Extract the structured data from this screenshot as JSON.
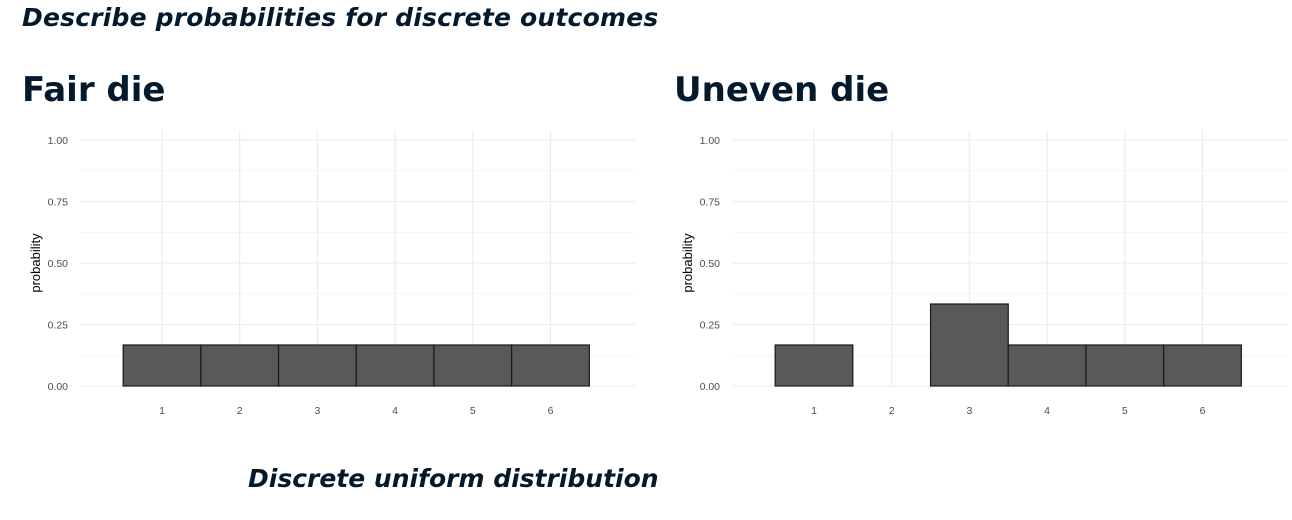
{
  "page": {
    "heading": "Describe probabilities for discrete outcomes",
    "caption": "Discrete uniform distribution"
  },
  "colors": {
    "text": "#05192d",
    "bar_fill": "#595959",
    "bar_stroke": "#1a1a1a",
    "grid": "#ebebeb",
    "tick_text": "#4d4d4d",
    "axis_label": "#000000"
  },
  "chart_data": [
    {
      "type": "bar",
      "title": "Fair die",
      "ylabel": "probability",
      "xlabel": "",
      "categories": [
        "1",
        "2",
        "3",
        "4",
        "5",
        "6"
      ],
      "values": [
        0.1667,
        0.1667,
        0.1667,
        0.1667,
        0.1667,
        0.1667
      ],
      "ylim": [
        0,
        1
      ],
      "yticks": [
        "0.00",
        "0.25",
        "0.50",
        "0.75",
        "1.00"
      ],
      "grid": true,
      "legend": "none"
    },
    {
      "type": "bar",
      "title": "Uneven die",
      "ylabel": "probability",
      "xlabel": "",
      "categories": [
        "1",
        "2",
        "3",
        "4",
        "5",
        "6"
      ],
      "values": [
        0.1667,
        0,
        0.3333,
        0.1667,
        0.1667,
        0.1667
      ],
      "ylim": [
        0,
        1
      ],
      "yticks": [
        "0.00",
        "0.25",
        "0.50",
        "0.75",
        "1.00"
      ],
      "grid": true,
      "legend": "none"
    }
  ]
}
